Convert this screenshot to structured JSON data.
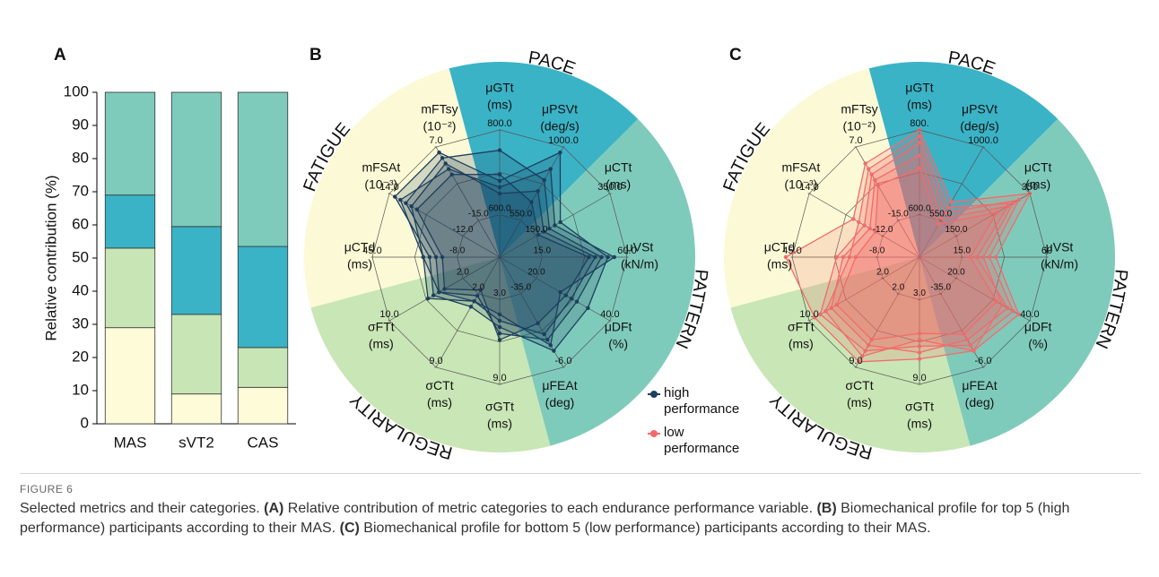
{
  "figure": {
    "label": "FIGURE 6",
    "caption": [
      {
        "text": "Selected metrics and their categories. "
      },
      {
        "text": "(A)",
        "bold": true
      },
      {
        "text": " Relative contribution of metric categories to each endurance performance variable. "
      },
      {
        "text": "(B)",
        "bold": true
      },
      {
        "text": " Biomechanical profile for top 5 (high performance) participants according to their MAS. "
      },
      {
        "text": "(C)",
        "bold": true
      },
      {
        "text": " Biomechanical profile for bottom 5 (low performance) participants according to their MAS."
      }
    ]
  },
  "chart_data": [
    {
      "type": "bar",
      "label": "A",
      "stacked": true,
      "y_label": "Relative contribution (%)",
      "categories": [
        "MAS",
        "sVT2",
        "CAS"
      ],
      "series": [
        {
          "color": "#fdfbd8",
          "values": [
            29,
            9,
            11
          ]
        },
        {
          "color": "#c8e6b5",
          "values": [
            24,
            24,
            12
          ]
        },
        {
          "color": "#3ab3c6",
          "values": [
            16,
            26.5,
            30.5
          ]
        },
        {
          "color": "#7ecbbb",
          "values": [
            31,
            40.5,
            46.5
          ]
        }
      ],
      "ylim": [
        0,
        100
      ],
      "yticks": [
        0,
        10,
        20,
        30,
        40,
        50,
        60,
        70,
        80,
        90,
        100
      ]
    },
    {
      "type": "radar",
      "label": "B",
      "sectors": [
        {
          "name": "PACE",
          "color": "#3bb3c6",
          "axes": [
            {
              "name": "μGTt",
              "unit": "(ms)",
              "ticks": [
                {
                  "value": 600,
                  "label": "600.0"
                },
                {
                  "value": 800,
                  "label": "800.0"
                }
              ]
            },
            {
              "name": "μPSVt",
              "unit": "(deg/s)",
              "ticks": [
                {
                  "value": 550,
                  "label": "550.0"
                },
                {
                  "value": 1000,
                  "label": "1000.0"
                }
              ]
            }
          ]
        },
        {
          "name": "PATTERN",
          "color": "#7fcbbb",
          "axes": [
            {
              "name": "μCTt",
              "unit": "(ms)",
              "ticks": [
                {
                  "value": 150,
                  "label": "150.0"
                },
                {
                  "value": 350,
                  "label": "350.0"
                }
              ]
            },
            {
              "name": "μVSt",
              "unit": "(kN/m)",
              "ticks": [
                {
                  "value": 15,
                  "label": "15.0"
                },
                {
                  "value": 60,
                  "label": "60.0"
                }
              ]
            },
            {
              "name": "μDFt",
              "unit": "(%)",
              "ticks": [
                {
                  "value": 20,
                  "label": "20.0"
                },
                {
                  "value": 40,
                  "label": "40.0"
                }
              ]
            },
            {
              "name": "μFEAt",
              "unit": "(deg)",
              "ticks": [
                {
                  "value": -35,
                  "label": "-35.0"
                },
                {
                  "value": -6,
                  "label": "-6.0"
                }
              ]
            }
          ]
        },
        {
          "name": "REGULARITY",
          "color": "#c9e6b6",
          "axes": [
            {
              "name": "σGTt",
              "unit": "(ms)",
              "ticks": [
                {
                  "value": 3,
                  "label": "3.0"
                },
                {
                  "value": 9,
                  "label": "9.0"
                }
              ]
            },
            {
              "name": "σCTt",
              "unit": "(ms)",
              "ticks": [
                {
                  "value": 2,
                  "label": "2.0"
                },
                {
                  "value": 9,
                  "label": "9.0"
                }
              ]
            },
            {
              "name": "σFTt",
              "unit": "(ms)",
              "ticks": [
                {
                  "value": 2,
                  "label": "2.0"
                },
                {
                  "value": 10,
                  "label": "10.0"
                }
              ]
            }
          ]
        },
        {
          "name": "FATIGUE",
          "color": "#fcfad6",
          "axes": [
            {
              "name": "μCTd",
              "unit": "(ms)",
              "ticks": [
                {
                  "value": -8,
                  "label": "-8.0"
                },
                {
                  "value": 45,
                  "label": "45.0"
                }
              ]
            },
            {
              "name": "mFSAt",
              "unit": "(10⁻³)",
              "ticks": [
                {
                  "value": -12,
                  "label": "-12.0"
                },
                {
                  "value": 14,
                  "label": "14.0"
                }
              ]
            },
            {
              "name": "mFTsy",
              "unit": "(10⁻²)",
              "ticks": [
                {
                  "value": -15,
                  "label": "-15.0"
                },
                {
                  "value": 7,
                  "label": "7.0"
                }
              ]
            }
          ]
        }
      ],
      "series": [
        {
          "name": "high performance",
          "color": "#1c3f5e",
          "profiles": [
            [
              0.6,
              0.95,
              0.55,
              0.85,
              0.8,
              0.85,
              0.55,
              0.45,
              0.6,
              0.55,
              0.95,
              0.95
            ],
            [
              0.84,
              0.7,
              0.45,
              0.8,
              0.7,
              0.75,
              0.6,
              0.35,
              0.55,
              0.5,
              0.85,
              0.9
            ],
            [
              0.5,
              0.6,
              0.4,
              0.75,
              0.65,
              0.7,
              0.5,
              0.4,
              0.65,
              0.6,
              0.8,
              0.85
            ],
            [
              0.65,
              0.5,
              0.35,
              0.7,
              0.6,
              0.6,
              0.65,
              0.3,
              0.5,
              0.45,
              0.75,
              0.75
            ],
            [
              0.55,
              0.8,
              0.5,
              0.9,
              0.55,
              0.8,
              0.45,
              0.4,
              0.55,
              0.6,
              0.9,
              0.8
            ]
          ]
        }
      ]
    },
    {
      "type": "radar",
      "label": "C",
      "sectors": [
        {
          "name": "PACE",
          "color": "#3bb3c6",
          "axes": [
            {
              "name": "μGTt",
              "unit": "(ms)",
              "ticks": [
                {
                  "value": 600,
                  "label": "600.0"
                },
                {
                  "value": 800,
                  "label": "800."
                }
              ]
            },
            {
              "name": "μPSVt",
              "unit": "(deg/s)",
              "ticks": [
                {
                  "value": 550,
                  "label": "550.0"
                },
                {
                  "value": 1000,
                  "label": "1000.0"
                }
              ]
            }
          ]
        },
        {
          "name": "PATTERN",
          "color": "#7fcbbb",
          "axes": [
            {
              "name": "μCTt",
              "unit": "(ms)",
              "ticks": [
                {
                  "value": 150,
                  "label": "150.0"
                },
                350
              ]
            },
            {
              "name": "μVSt",
              "unit": "(kN/m)",
              "ticks": [
                {
                  "value": 15,
                  "label": "15.0"
                },
                60
              ]
            },
            {
              "name": "μDFt",
              "unit": "(%)",
              "ticks": [
                {
                  "value": 20,
                  "label": "20.0"
                },
                {
                  "value": 40,
                  "label": "40.0"
                }
              ]
            },
            {
              "name": "μFEAt",
              "unit": "(deg)",
              "ticks": [
                {
                  "value": -35,
                  "label": "-35.0"
                },
                {
                  "value": -6,
                  "label": "-6.0"
                }
              ]
            }
          ]
        },
        {
          "name": "REGULARITY",
          "color": "#c9e6b6",
          "axes": [
            {
              "name": "σGTt",
              "unit": "(ms)",
              "ticks": [
                {
                  "value": 3,
                  "label": "3.0"
                },
                {
                  "value": 9,
                  "label": "9.0"
                }
              ]
            },
            {
              "name": "σCTt",
              "unit": "(ms)",
              "ticks": [
                {
                  "value": 2,
                  "label": "2.0"
                },
                {
                  "value": 9,
                  "label": "9.0"
                }
              ]
            },
            {
              "name": "σFTt",
              "unit": "(ms)",
              "ticks": [
                {
                  "value": 2,
                  "label": "2.0"
                },
                {
                  "value": 10,
                  "label": "10.0"
                }
              ]
            }
          ]
        },
        {
          "name": "FATIGUE",
          "color": "#fcfad6",
          "axes": [
            {
              "name": "μCTd",
              "unit": "(ms)",
              "ticks": [
                {
                  "value": -8,
                  "label": "-8.0"
                },
                {
                  "value": 45,
                  "label": "45.0"
                }
              ]
            },
            {
              "name": "mFSAt",
              "unit": "(10⁻³)",
              "ticks": [
                {
                  "value": -12,
                  "label": "-12.0"
                },
                {
                  "value": 14,
                  "label": "14.0"
                }
              ]
            },
            {
              "name": "mFTsy",
              "unit": "(10⁻²)",
              "ticks": [
                {
                  "value": -15,
                  "label": "-15.0"
                },
                {
                  "value": 7,
                  "label": "7.0"
                }
              ]
            }
          ]
        }
      ],
      "series": [
        {
          "name": "low performance",
          "color": "#f26b6b",
          "profiles": [
            [
              1.0,
              0.5,
              1.0,
              0.6,
              0.9,
              0.85,
              0.8,
              0.95,
              0.95,
              1.05,
              0.6,
              0.85
            ],
            [
              0.9,
              0.4,
              0.9,
              0.55,
              0.85,
              0.8,
              0.7,
              0.85,
              0.9,
              0.65,
              0.5,
              0.75
            ],
            [
              0.8,
              0.35,
              0.8,
              0.45,
              0.8,
              0.75,
              0.75,
              0.8,
              0.8,
              0.6,
              0.45,
              0.7
            ],
            [
              0.95,
              0.45,
              0.85,
              0.5,
              0.75,
              0.85,
              0.65,
              0.9,
              0.85,
              0.55,
              0.55,
              0.8
            ],
            [
              0.7,
              0.3,
              0.7,
              0.4,
              0.7,
              0.7,
              0.6,
              0.75,
              0.75,
              0.5,
              0.4,
              0.65
            ]
          ]
        }
      ]
    }
  ]
}
